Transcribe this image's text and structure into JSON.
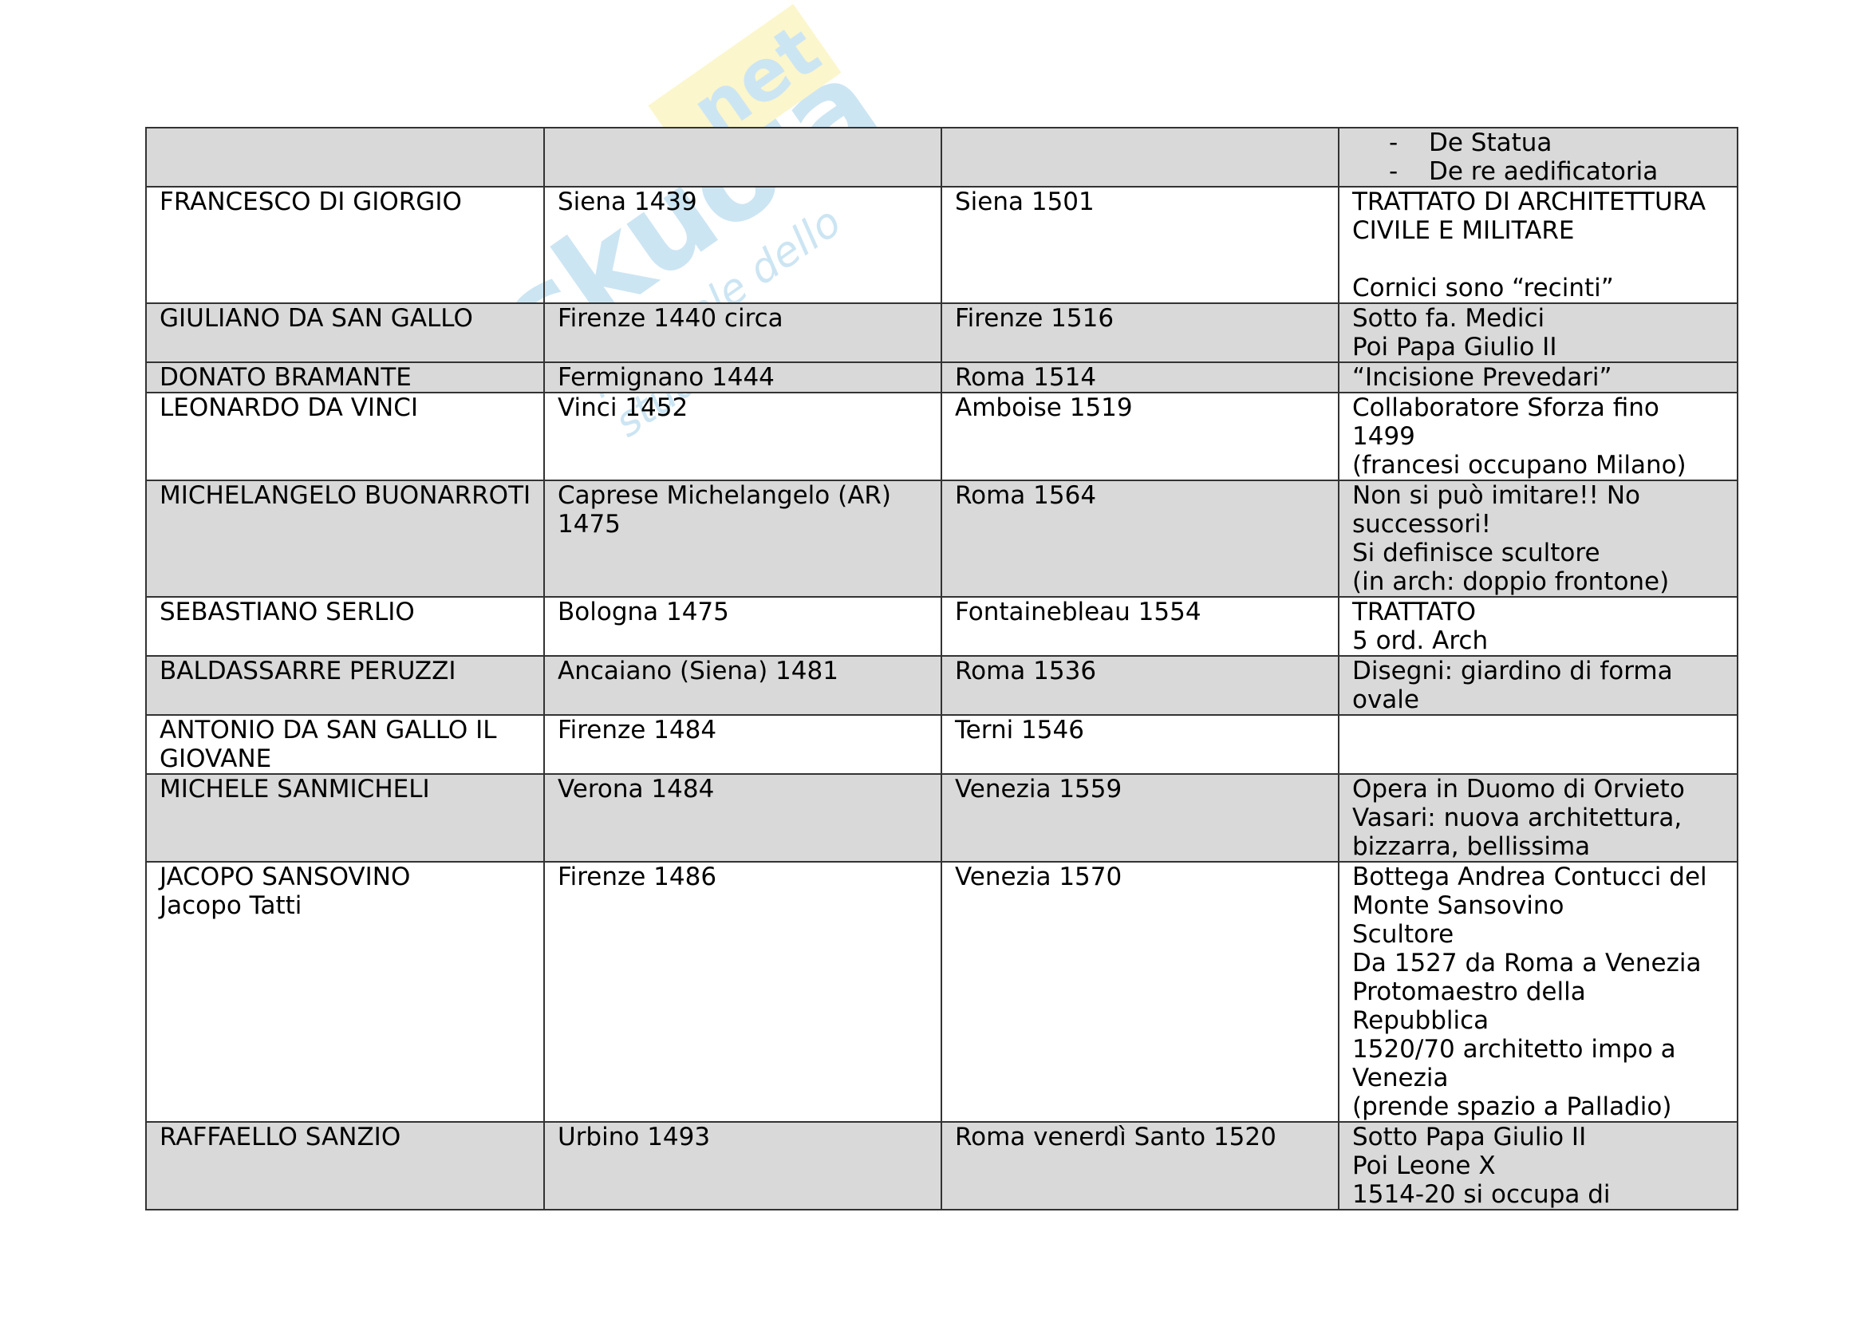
{
  "watermark": {
    "logo_text": "skuola.net",
    "tagline": "il portale dello studente",
    "colors": {
      "blue": "#4aa3d6",
      "yellow": "#f2e04a"
    }
  },
  "colors": {
    "shaded_row": "#d9d9d9",
    "border": "#333333"
  },
  "table": {
    "rows": [
      {
        "shaded": true,
        "cells": [
          "",
          "",
          "",
          ""
        ],
        "list": [
          "De Statua",
          "De re aedificatoria"
        ]
      },
      {
        "shaded": false,
        "cells": [
          "FRANCESCO DI GIORGIO",
          "Siena 1439",
          "Siena 1501",
          "TRATTATO DI ARCHITETTURA\nCIVILE E MILITARE\n \nCornici sono “recinti”"
        ]
      },
      {
        "shaded": true,
        "cells": [
          "GIULIANO DA SAN GALLO",
          "Firenze 1440 circa",
          "Firenze 1516",
          "Sotto fa. Medici\nPoi Papa Giulio II"
        ]
      },
      {
        "shaded": true,
        "cells": [
          "DONATO BRAMANTE",
          "Fermignano 1444",
          "Roma 1514",
          "“Incisione Prevedari”"
        ]
      },
      {
        "shaded": false,
        "cells": [
          "LEONARDO DA VINCI",
          "Vinci 1452",
          "Amboise 1519",
          "Collaboratore Sforza fino\n1499\n(francesi occupano Milano)"
        ]
      },
      {
        "shaded": true,
        "cells": [
          "MICHELANGELO BUONARROTI",
          "Caprese Michelangelo (AR)\n1475",
          "Roma 1564",
          "Non si può imitare!! No\nsuccessori!\nSi definisce scultore\n(in arch: doppio frontone)"
        ]
      },
      {
        "shaded": false,
        "cells": [
          "SEBASTIANO SERLIO",
          "Bologna 1475",
          "Fontainebleau 1554",
          "TRATTATO\n5 ord. Arch"
        ]
      },
      {
        "shaded": true,
        "cells": [
          "BALDASSARRE PERUZZI",
          "Ancaiano (Siena) 1481",
          "Roma 1536",
          "Disegni: giardino di forma\novale"
        ]
      },
      {
        "shaded": false,
        "cells": [
          "ANTONIO DA SAN GALLO IL\nGIOVANE",
          "Firenze 1484",
          "Terni 1546",
          ""
        ]
      },
      {
        "shaded": true,
        "cells": [
          "MICHELE SANMICHELI",
          "Verona 1484",
          "Venezia 1559",
          "Opera in Duomo di Orvieto\nVasari: nuova architettura,\nbizzarra, bellissima"
        ]
      },
      {
        "shaded": false,
        "cells": [
          "JACOPO SANSOVINO\nJacopo Tatti",
          "Firenze 1486",
          "Venezia 1570",
          "Bottega Andrea Contucci del\nMonte Sansovino\nScultore\nDa 1527 da Roma a Venezia\nProtomaestro della\nRepubblica\n1520/70 architetto impo a\nVenezia\n(prende spazio a Palladio)"
        ]
      },
      {
        "shaded": true,
        "cells": [
          "RAFFAELLO SANZIO",
          "Urbino 1493",
          "Roma venerdì Santo 1520",
          "Sotto Papa Giulio II\nPoi Leone X\n1514-20 si occupa di"
        ]
      }
    ]
  }
}
